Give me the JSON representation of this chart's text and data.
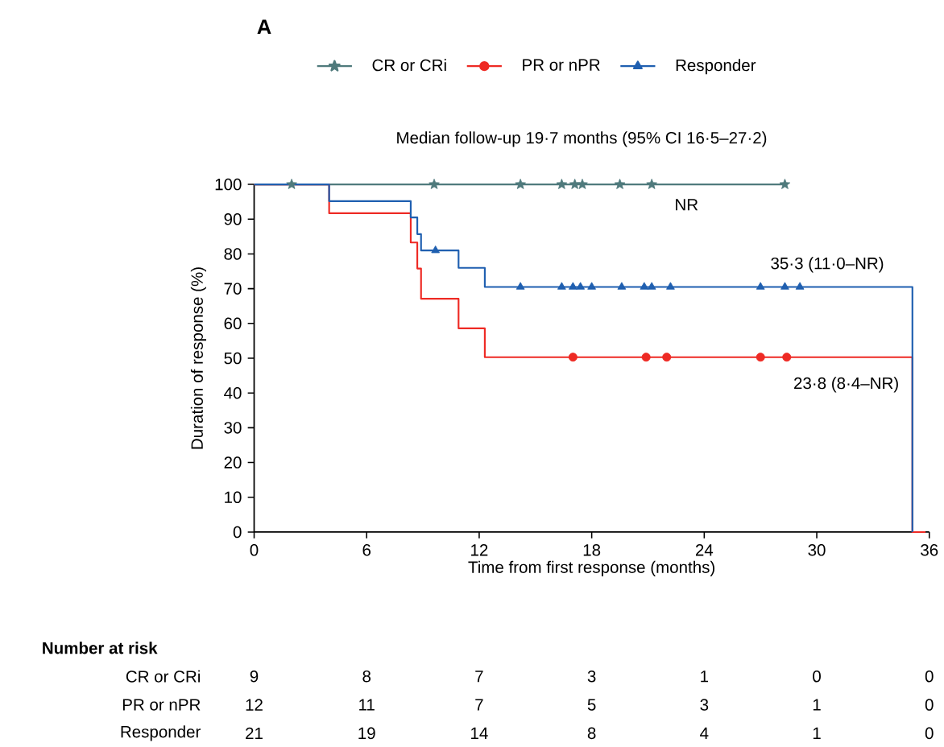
{
  "chart_data": {
    "type": "step",
    "title": "A",
    "subtitle": "Median follow-up 19·7 months (95% CI 16·5–27·2)",
    "xlabel": "Time from first response (months)",
    "ylabel": "Duration of response (%)",
    "xlim": [
      0,
      36
    ],
    "ylim": [
      0,
      100
    ],
    "xticks": [
      0,
      6,
      12,
      18,
      24,
      30,
      36
    ],
    "yticks": [
      0,
      10,
      20,
      30,
      40,
      50,
      60,
      70,
      80,
      90,
      100
    ],
    "legend": "top",
    "series": [
      {
        "name": "CR or CRi",
        "color": "#4f7a7c",
        "x": [
          0,
          28.3
        ],
        "values": [
          100,
          100
        ]
      },
      {
        "name": "PR or nPR",
        "color": "#ee2a24",
        "x": [
          0,
          4.0,
          8.35,
          8.7,
          8.9,
          10.9,
          12.3,
          35.1,
          35.8
        ],
        "values": [
          100,
          91.7,
          83.3,
          75.8,
          67.1,
          58.6,
          50.3,
          0,
          0
        ]
      },
      {
        "name": "Responder",
        "color": "#1f5fb0",
        "x": [
          0,
          4.0,
          8.35,
          8.7,
          8.9,
          10.9,
          12.3,
          35.1
        ],
        "values": [
          100,
          95.2,
          90.5,
          85.7,
          81.0,
          76.0,
          70.5,
          0
        ]
      },
      {
        "type": "scatter",
        "color": "#4f7a7c",
        "marker": "star",
        "x": [
          2.0,
          9.6,
          14.2,
          16.4,
          17.1,
          17.5,
          19.5,
          21.2,
          28.3
        ],
        "values": [
          100,
          100,
          100,
          100,
          100,
          100,
          100,
          100,
          100
        ]
      },
      {
        "type": "scatter",
        "color": "#ee2a24",
        "marker": "circle",
        "x": [
          17.0,
          20.9,
          22.0,
          27.0,
          28.4
        ],
        "values": [
          50.3,
          50.3,
          50.3,
          50.3,
          50.3
        ]
      },
      {
        "type": "scatter",
        "color": "#1f5fb0",
        "marker": "triangle",
        "x": [
          9.67,
          14.2,
          16.4,
          17.0,
          17.4,
          18.0,
          19.6,
          20.8,
          21.2,
          22.2,
          27.0,
          28.3,
          29.1
        ],
        "values": [
          81.0,
          70.5,
          70.5,
          70.5,
          70.5,
          70.5,
          70.5,
          70.5,
          70.5,
          70.5,
          70.5,
          70.5,
          70.5
        ]
      }
    ],
    "annotations": [
      "NR",
      "23·8 (8·4–NR)",
      "35·3 (11·0–NR)",
      "Number at risk",
      "CR or CRi",
      "9",
      "8",
      "7",
      "3",
      "1",
      "0",
      "0",
      "PR or nPR",
      "12",
      "11",
      "7",
      "5",
      "3",
      "1",
      "0",
      "Responder",
      "21",
      "19",
      "14",
      "8",
      "4",
      "1",
      "0"
    ]
  }
}
